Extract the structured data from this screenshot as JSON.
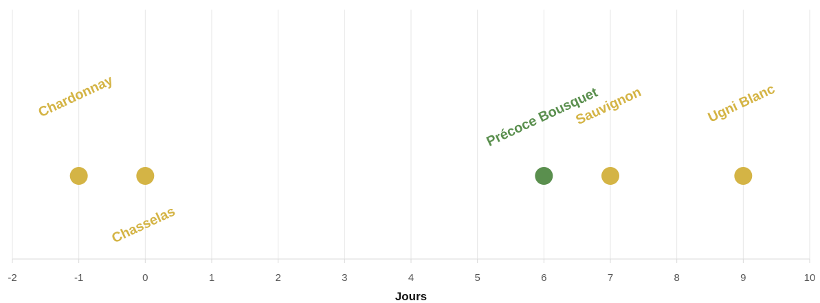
{
  "chart_data": {
    "type": "scatter",
    "xlabel": "Jours",
    "ylabel": "",
    "xlim": [
      -2,
      10
    ],
    "x_ticks": [
      -2,
      -1,
      0,
      1,
      2,
      3,
      4,
      5,
      6,
      7,
      8,
      9,
      10
    ],
    "grid": true,
    "legend": "none",
    "points": [
      {
        "label": "Chardonnay",
        "x": -1,
        "color": "#d4b445",
        "label_side": "above"
      },
      {
        "label": "Chasselas",
        "x": 0,
        "color": "#d4b445",
        "label_side": "below"
      },
      {
        "label": "Précoce Bousquet",
        "x": 6,
        "color": "#5a8f4e",
        "label_side": "above"
      },
      {
        "label": "Sauvignon",
        "x": 7,
        "color": "#d4b445",
        "label_side": "above"
      },
      {
        "label": "Ugni Blanc",
        "x": 9,
        "color": "#d4b445",
        "label_side": "above"
      }
    ]
  },
  "colors": {
    "gold": "#d4b445",
    "green": "#5a8f4e",
    "grid": "#e6e6e6",
    "tick_text": "#555555",
    "axis_title": "#111111"
  }
}
